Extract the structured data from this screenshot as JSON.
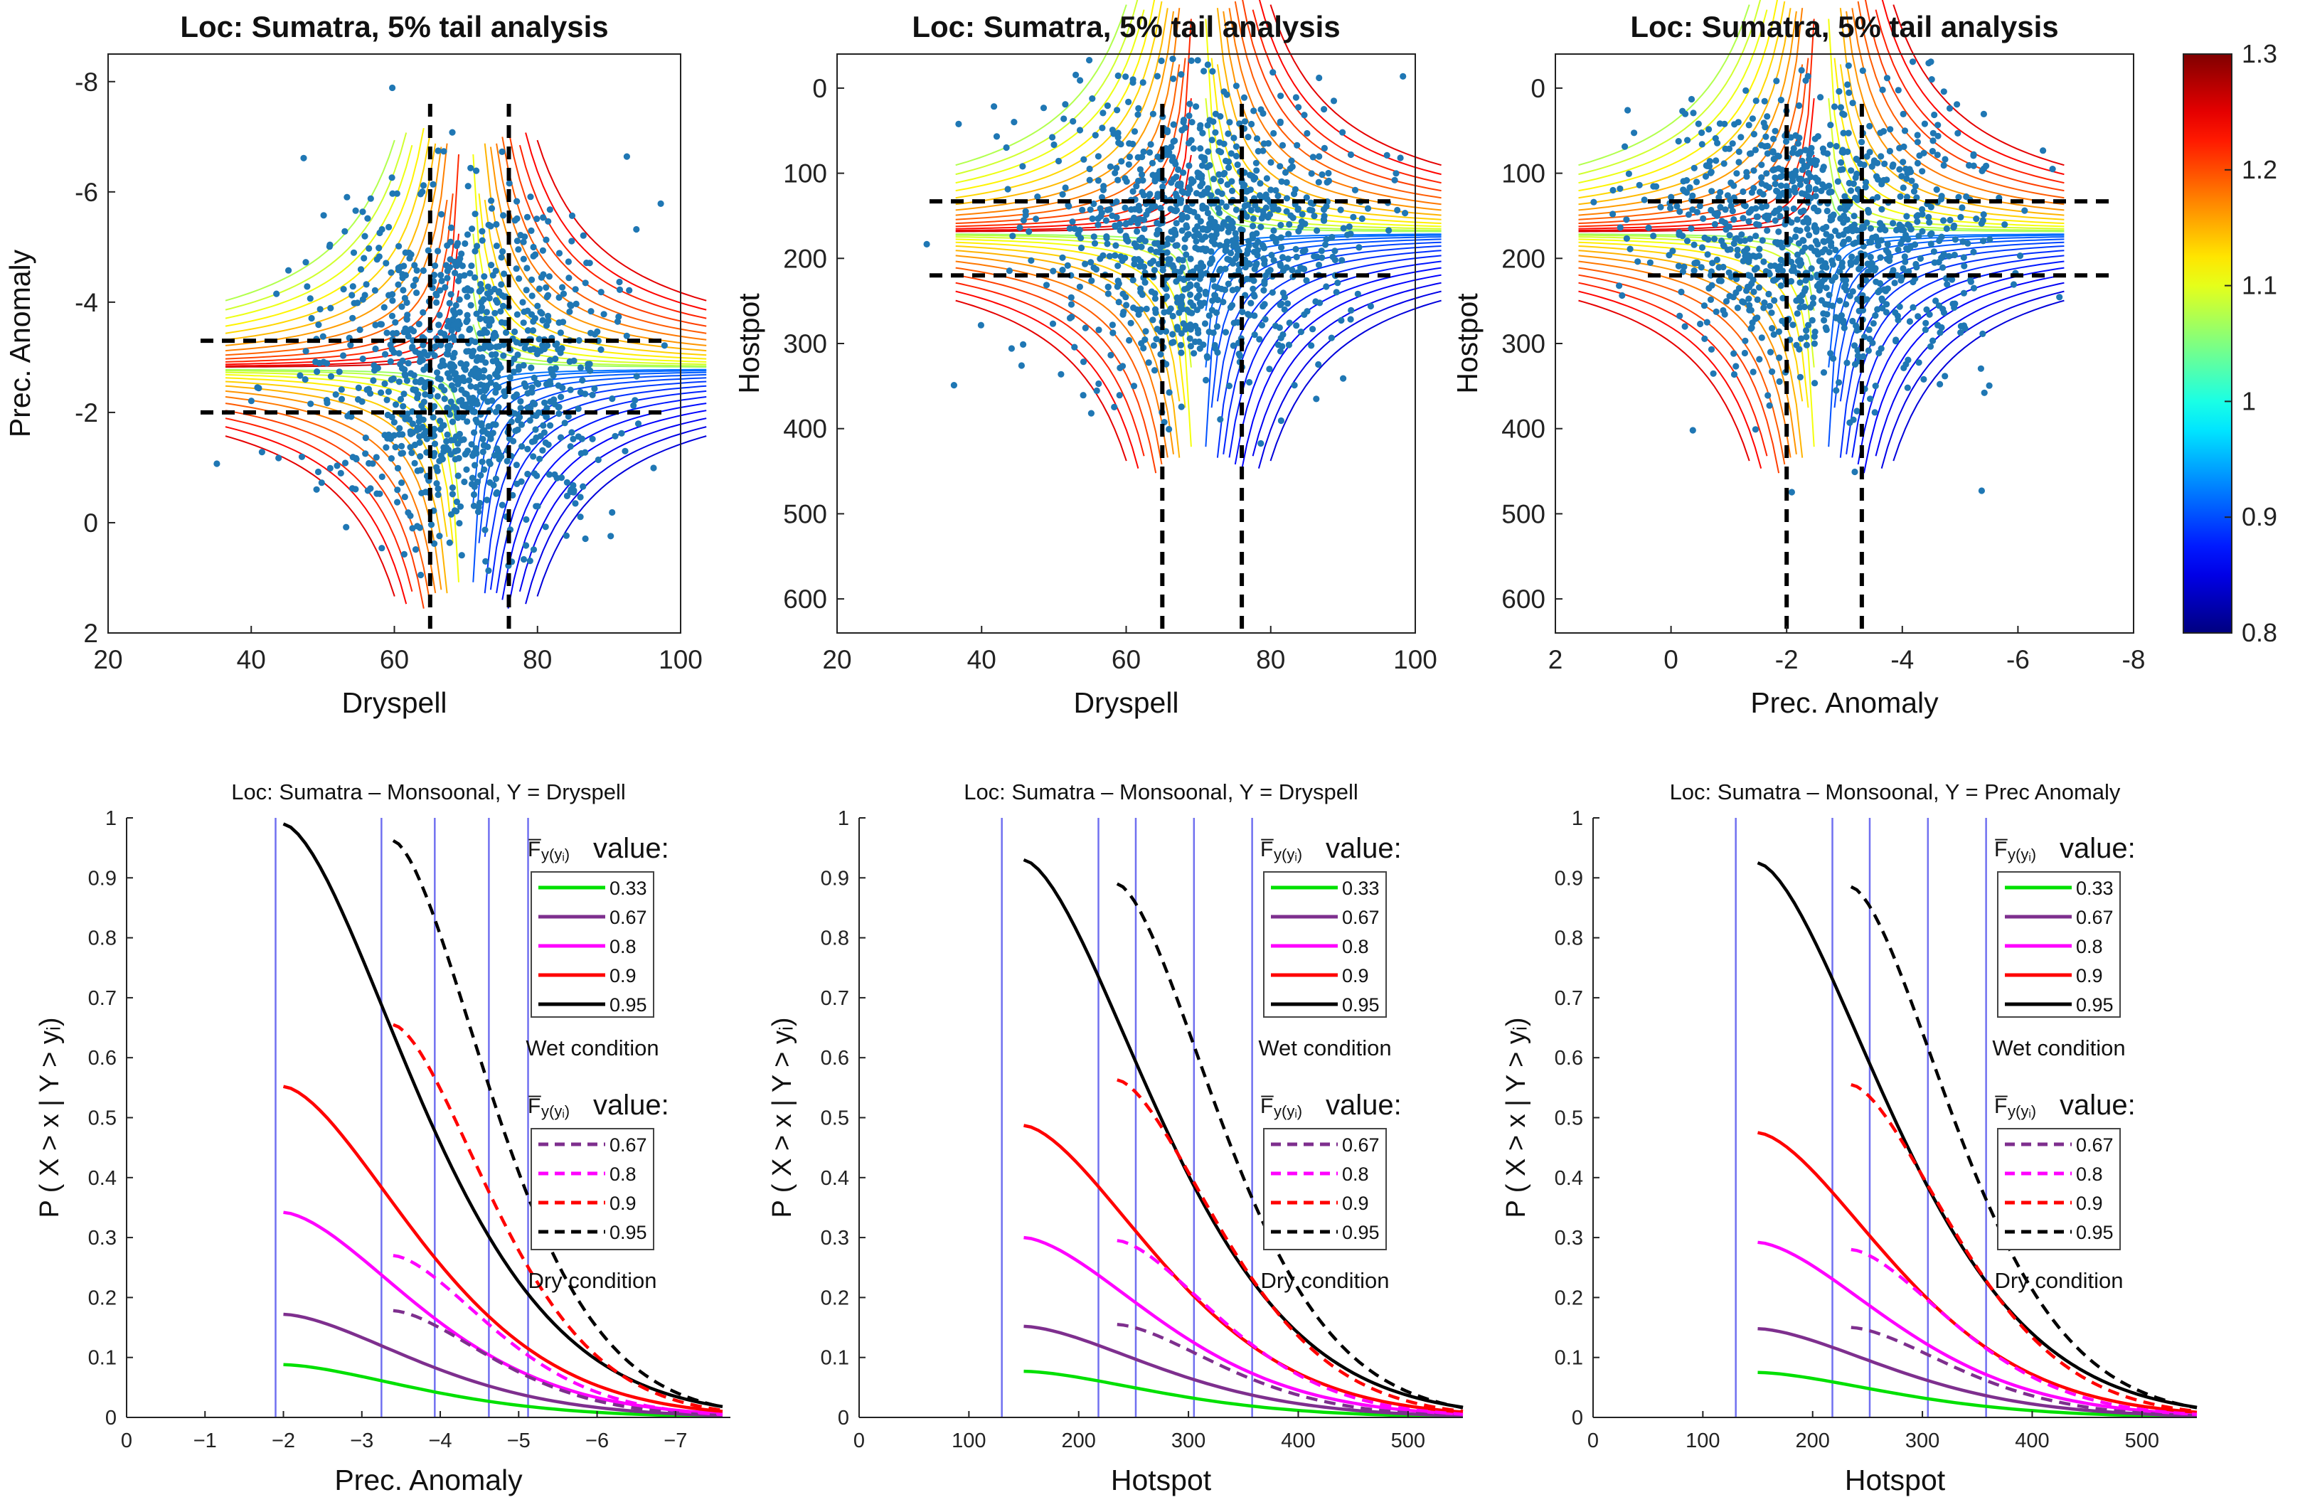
{
  "colors": {
    "scatter": "#1f77b4",
    "guide_line": "#7070f0",
    "dashed_guides": "#000000",
    "green": "#00e000",
    "purple": "#7e2f8e",
    "magenta": "#ff00ff",
    "red": "#ff0000",
    "black": "#000000"
  },
  "colorbar": {
    "ticks": [
      "1.3",
      "1.2",
      "1.1",
      "1",
      "0.9",
      "0.8"
    ],
    "range": [
      0.8,
      1.3
    ]
  },
  "chart_data": [
    {
      "id": "top1",
      "type": "scatter",
      "title": "Loc: Sumatra, 5% tail analysis",
      "xlabel": "Dryspell",
      "ylabel": "Prec. Anomaly",
      "xlim": [
        20,
        100
      ],
      "ylim": [
        -8.5,
        2
      ],
      "x_ticks": [
        "20",
        "40",
        "60",
        "80",
        "100"
      ],
      "y_ticks": [
        "-8",
        "-6",
        "-4",
        "-2",
        "0",
        "2"
      ],
      "x_center": 70,
      "x_spread": 10,
      "y_center": -2.8,
      "y_spread": 1.5,
      "guides_x": [
        65,
        76
      ],
      "guides_y": [
        -2,
        -3.3
      ],
      "n_points": 1000
    },
    {
      "id": "top2",
      "type": "scatter",
      "title": "Loc: Sumatra, 5% tail analysis",
      "xlabel": "Dryspell",
      "ylabel": "Hostpot",
      "xlim": [
        20,
        100
      ],
      "ylim": [
        -40,
        640
      ],
      "x_ticks": [
        "20",
        "40",
        "60",
        "80",
        "100"
      ],
      "y_ticks": [
        "0",
        "100",
        "200",
        "300",
        "400",
        "500",
        "600"
      ],
      "x_center": 70,
      "x_spread": 10,
      "y_center": 170,
      "y_spread": 85,
      "guides_x": [
        65,
        76
      ],
      "guides_y": [
        133,
        220
      ],
      "n_points": 1000
    },
    {
      "id": "top3",
      "type": "scatter",
      "title": "Loc: Sumatra, 5% tail analysis",
      "xlabel": "Prec. Anomaly",
      "ylabel": "Hostpot",
      "xlim": [
        2,
        -8
      ],
      "ylim": [
        -40,
        640
      ],
      "x_ticks": [
        "2",
        "0",
        "-2",
        "-4",
        "-6",
        "-8"
      ],
      "y_ticks": [
        "0",
        "100",
        "200",
        "300",
        "400",
        "500",
        "600"
      ],
      "x_center": -2.6,
      "x_spread": 1.4,
      "y_center": 170,
      "y_spread": 85,
      "guides_x": [
        -2,
        -3.3
      ],
      "guides_y": [
        133,
        220
      ],
      "n_points": 1000
    },
    {
      "id": "bot1",
      "type": "line",
      "title": "Loc: Sumatra – Monsoonal, Y = Dryspell",
      "xlabel": "Prec. Anomaly",
      "ylabel": "P ( X > x | Y > yᵢ)",
      "xlim": [
        0,
        -7.7
      ],
      "ylim": [
        0,
        1
      ],
      "x_ticks": [
        "0",
        "−1",
        "−2",
        "−3",
        "−4",
        "−5",
        "−6",
        "−7"
      ],
      "y_ticks": [
        "0",
        "0.1",
        "0.2",
        "0.3",
        "0.4",
        "0.5",
        "0.6",
        "0.7",
        "0.8",
        "0.9",
        "1"
      ],
      "vlines": [
        -1.9,
        -3.25,
        -3.93,
        -4.62,
        -5.12
      ],
      "x_start": -2.0,
      "x_start_dry": -3.4,
      "x_end": -7.6,
      "solid_series": [
        {
          "name": "0.33",
          "start": 0.088
        },
        {
          "name": "0.67",
          "start": 0.172
        },
        {
          "name": "0.8",
          "start": 0.342
        },
        {
          "name": "0.9",
          "start": 0.552
        },
        {
          "name": "0.95",
          "start": 0.99
        }
      ],
      "dashed_series": [
        {
          "name": "0.67",
          "start": 0.178
        },
        {
          "name": "0.8",
          "start": 0.27
        },
        {
          "name": "0.9",
          "start": 0.655
        },
        {
          "name": "0.95",
          "start": 0.962
        }
      ]
    },
    {
      "id": "bot2",
      "type": "line",
      "title": "Loc: Sumatra – Monsoonal, Y = Dryspell",
      "xlabel": "Hotspot",
      "ylabel": "P ( X > x | Y > yᵢ)",
      "xlim": [
        0,
        550
      ],
      "ylim": [
        0,
        1
      ],
      "x_ticks": [
        "0",
        "100",
        "200",
        "300",
        "400",
        "500"
      ],
      "y_ticks": [
        "0",
        "0.1",
        "0.2",
        "0.3",
        "0.4",
        "0.5",
        "0.6",
        "0.7",
        "0.8",
        "0.9",
        "1"
      ],
      "vlines": [
        130,
        218,
        252,
        305,
        358
      ],
      "x_start": 150,
      "x_start_dry": 235,
      "x_end": 550,
      "solid_series": [
        {
          "name": "0.33",
          "start": 0.077
        },
        {
          "name": "0.67",
          "start": 0.152
        },
        {
          "name": "0.8",
          "start": 0.3
        },
        {
          "name": "0.9",
          "start": 0.487
        },
        {
          "name": "0.95",
          "start": 0.93
        }
      ],
      "dashed_series": [
        {
          "name": "0.67",
          "start": 0.155
        },
        {
          "name": "0.8",
          "start": 0.295
        },
        {
          "name": "0.9",
          "start": 0.563
        },
        {
          "name": "0.95",
          "start": 0.89
        }
      ]
    },
    {
      "id": "bot3",
      "type": "line",
      "title": "Loc: Sumatra – Monsoonal, Y = Prec Anomaly",
      "xlabel": "Hotspot",
      "ylabel": "P ( X > x | Y > yᵢ)",
      "xlim": [
        0,
        550
      ],
      "ylim": [
        0,
        1
      ],
      "x_ticks": [
        "0",
        "100",
        "200",
        "300",
        "400",
        "500"
      ],
      "y_ticks": [
        "0",
        "0.1",
        "0.2",
        "0.3",
        "0.4",
        "0.5",
        "0.6",
        "0.7",
        "0.8",
        "0.9",
        "1"
      ],
      "vlines": [
        130,
        218,
        252,
        305,
        358
      ],
      "x_start": 150,
      "x_start_dry": 235,
      "x_end": 550,
      "solid_series": [
        {
          "name": "0.33",
          "start": 0.075
        },
        {
          "name": "0.67",
          "start": 0.148
        },
        {
          "name": "0.8",
          "start": 0.292
        },
        {
          "name": "0.9",
          "start": 0.475
        },
        {
          "name": "0.95",
          "start": 0.925
        }
      ],
      "dashed_series": [
        {
          "name": "0.67",
          "start": 0.15
        },
        {
          "name": "0.8",
          "start": 0.28
        },
        {
          "name": "0.9",
          "start": 0.555
        },
        {
          "name": "0.95",
          "start": 0.885
        }
      ]
    }
  ],
  "legend": {
    "wet_header": "value:",
    "dry_header": "value:",
    "wet_caption": "Wet condition",
    "dry_caption": "Dry condition",
    "wet_entries": [
      "0.33",
      "0.67",
      "0.8",
      "0.9",
      "0.95"
    ],
    "dry_entries": [
      "0.67",
      "0.8",
      "0.9",
      "0.95"
    ]
  }
}
